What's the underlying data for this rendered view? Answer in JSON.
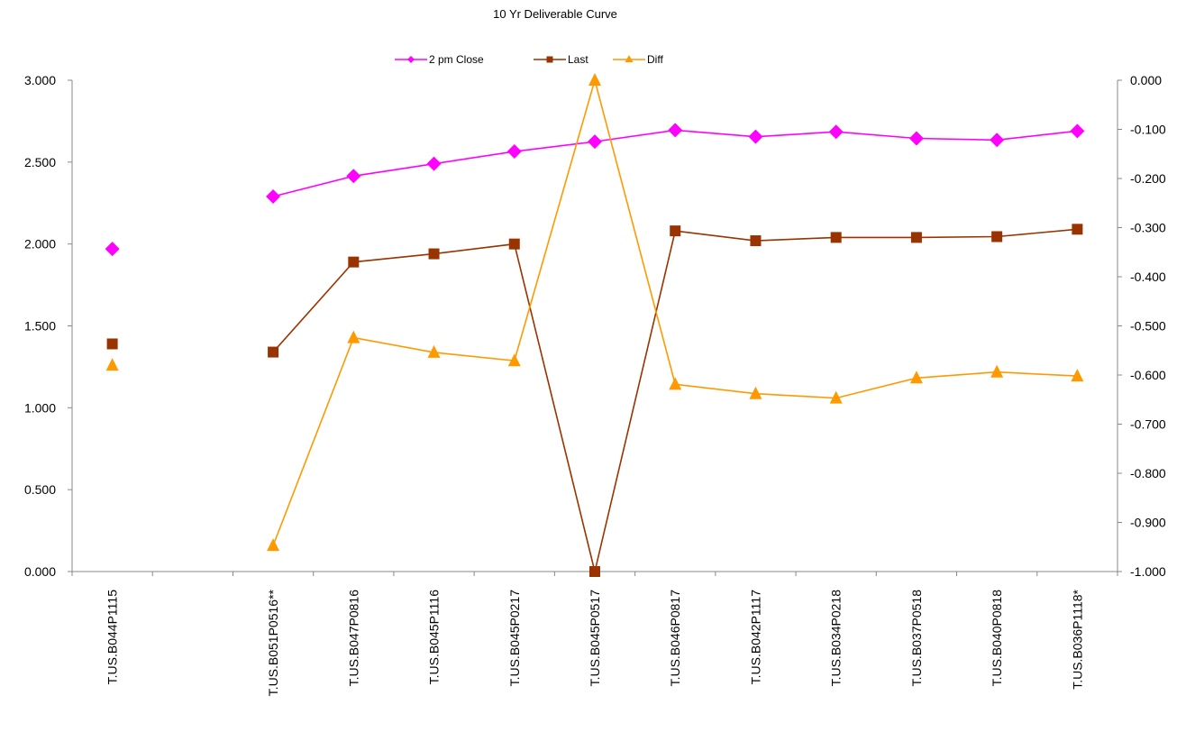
{
  "chart_data": {
    "type": "line",
    "title": "10 Yr Deliverable Curve",
    "categories": [
      "T.US.B044P1115",
      "",
      "T.US.B051P0516**",
      "T.US.B047P0816",
      "T.US.B045P1116",
      "T.US.B045P0217",
      "T.US.B045P0517",
      "T.US.B046P0817",
      "T.US.B042P1117",
      "T.US.B034P0218",
      "T.US.B037P0518",
      "T.US.B040P0818",
      "T.US.B036P1118*"
    ],
    "left_axis": {
      "ylim": [
        0,
        3
      ],
      "ticks": [
        "0.000",
        "0.500",
        "1.000",
        "1.500",
        "2.000",
        "2.500",
        "3.000"
      ],
      "tick_values": [
        0,
        0.5,
        1,
        1.5,
        2,
        2.5,
        3
      ]
    },
    "right_axis": {
      "ylim": [
        -1,
        0
      ],
      "ticks": [
        "-1.000",
        "-0.900",
        "-0.800",
        "-0.700",
        "-0.600",
        "-0.500",
        "-0.400",
        "-0.300",
        "-0.200",
        "-0.100",
        "0.000"
      ],
      "tick_values": [
        -1,
        -0.9,
        -0.8,
        -0.7,
        -0.6,
        -0.5,
        -0.4,
        -0.3,
        -0.2,
        -0.1,
        0
      ]
    },
    "series": [
      {
        "name": "2 pm  Close",
        "axis": "left",
        "color": "#ff00ff",
        "marker": "diamond",
        "values": [
          1.97,
          null,
          2.29,
          2.415,
          2.49,
          2.565,
          2.625,
          2.695,
          2.655,
          2.685,
          2.645,
          2.635,
          2.69
        ]
      },
      {
        "name": "Last",
        "axis": "left",
        "color": "#993300",
        "marker": "square",
        "values": [
          1.39,
          null,
          1.34,
          1.89,
          1.94,
          2.0,
          0.0,
          2.08,
          2.02,
          2.04,
          2.04,
          2.045,
          2.09
        ]
      },
      {
        "name": "Diff",
        "axis": "right",
        "color": "#ff9900",
        "marker": "triangle",
        "values": [
          -0.58,
          null,
          -0.947,
          -0.524,
          -0.554,
          -0.571,
          0.0,
          -0.619,
          -0.638,
          -0.647,
          -0.606,
          -0.594,
          -0.602
        ]
      }
    ],
    "legend_position": "top-center",
    "grid": false
  }
}
